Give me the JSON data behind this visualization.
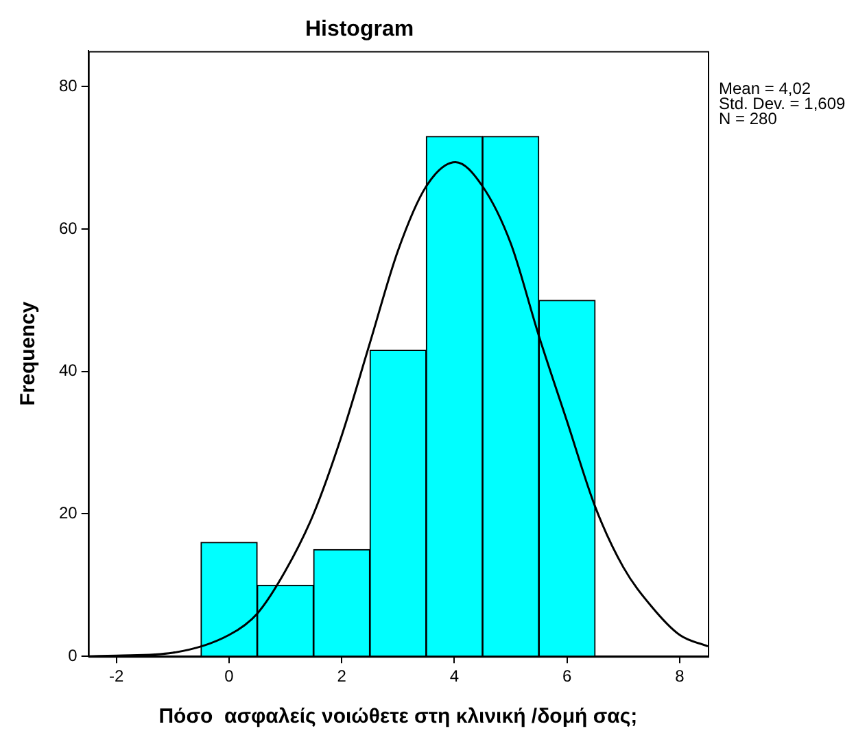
{
  "chart_data": {
    "type": "histogram",
    "title": "Histogram",
    "xlabel": "Πόσο  ασφαλείς νοιώθετε στη κλινική /δομή σας;",
    "ylabel": "Frequency",
    "xlim": [
      -2.5,
      8.5
    ],
    "xticks": [
      -2,
      0,
      2,
      4,
      6,
      8
    ],
    "ylim": [
      0,
      85
    ],
    "yticks": [
      0,
      20,
      40,
      60,
      80
    ],
    "series": [
      {
        "color": "#00ffff",
        "bins": [
          -0.5,
          0.5,
          1.5,
          2.5,
          3.5,
          4.5,
          5.5,
          6.5
        ],
        "values": [
          16,
          10,
          15,
          43,
          73,
          73,
          50
        ]
      },
      {
        "type": "line",
        "color": "#000000",
        "x": [
          -2.5,
          -2,
          -1,
          0,
          0.5,
          1,
          1.5,
          2,
          2.5,
          3,
          3.5,
          4.02,
          4.5,
          5,
          5.5,
          6,
          6.5,
          7,
          7.5,
          8,
          8.5
        ],
        "values": [
          0,
          0.1,
          0.5,
          3,
          6,
          12,
          20,
          31,
          44,
          57,
          66,
          69.4,
          66,
          58,
          45,
          33,
          21,
          12.5,
          7,
          3,
          1.4
        ]
      }
    ],
    "annotations": [
      "Mean = 4,02",
      "Std. Dev. = 1,609",
      "N = 280"
    ]
  }
}
